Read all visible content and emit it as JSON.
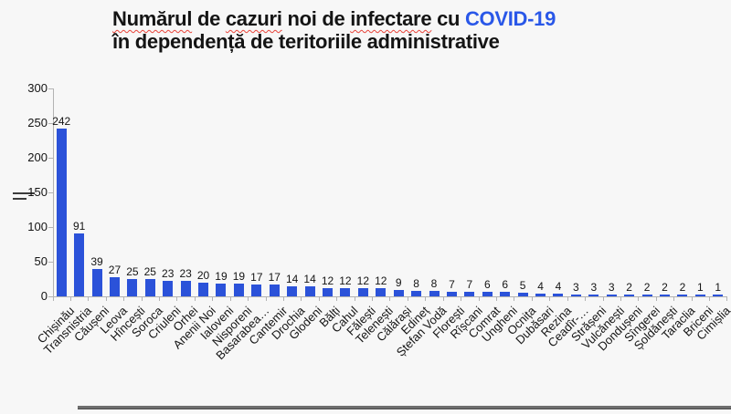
{
  "title": {
    "line1_parts": [
      {
        "text": "Numărul",
        "spellcheck": true,
        "accent": false
      },
      {
        "text": " de ",
        "spellcheck": false,
        "accent": false
      },
      {
        "text": "cazuri",
        "spellcheck": true,
        "accent": false
      },
      {
        "text": " noi de ",
        "spellcheck": false,
        "accent": false
      },
      {
        "text": "infectare",
        "spellcheck": true,
        "accent": false
      },
      {
        "text": " cu ",
        "spellcheck": false,
        "accent": false
      },
      {
        "text": "COVID-19",
        "spellcheck": false,
        "accent": true
      }
    ],
    "line2": "în dependență de teritoriile administrative"
  },
  "colors": {
    "bar": "#2b52d9",
    "accent_blue": "#2957e8",
    "spellcheck_red": "#e8443a",
    "axis_gray": "#b3b3b3",
    "text": "#141414",
    "background": "#f7f7f7",
    "window_edge": "#6e6e6e"
  },
  "chart_data": {
    "type": "bar",
    "title": "Numărul de cazuri noi de infectare cu COVID-19 în dependență de teritoriile administrative",
    "categories": [
      "Chișinău",
      "Transnistria",
      "Căușeni",
      "Leova",
      "Hîncești",
      "Soroca",
      "Criuleni",
      "Orhei",
      "Anenii Noi",
      "Ialoveni",
      "Nisporeni",
      "Basarabea…",
      "Cantemir",
      "Drochia",
      "Glodeni",
      "Bălți",
      "Cahul",
      "Fălești",
      "Telenești",
      "Călărași",
      "Edineț",
      "Ștefan Vodă",
      "Florești",
      "Rîșcani",
      "Comrat",
      "Ungheni",
      "Ocnița",
      "Dubăsari",
      "Rezina",
      "Ceadîr-…",
      "Strășeni",
      "Vulcănești",
      "Dondușeni",
      "Sîngerei",
      "Șoldănești",
      "Taraclia",
      "Briceni",
      "Cimișlia"
    ],
    "values": [
      242,
      91,
      39,
      27,
      25,
      25,
      23,
      23,
      20,
      19,
      19,
      17,
      17,
      14,
      14,
      12,
      12,
      12,
      12,
      9,
      8,
      8,
      7,
      7,
      6,
      6,
      5,
      4,
      4,
      3,
      3,
      3,
      2,
      2,
      2,
      2,
      1,
      1
    ],
    "xlabel": "",
    "ylabel": "",
    "ylim": [
      0,
      300
    ],
    "yticks": [
      0,
      50,
      100,
      150,
      200,
      250,
      300
    ],
    "grid": false,
    "legend": false,
    "bar_color": "#2b52d9",
    "value_labels": true
  }
}
